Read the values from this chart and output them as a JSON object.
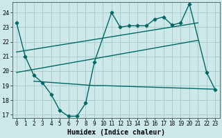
{
  "xlabel": "Humidex (Indice chaleur)",
  "ylabel": "",
  "bg_color": "#cce8e8",
  "grid_color": "#aacccc",
  "line_color": "#006666",
  "ylim": [
    16.8,
    24.7
  ],
  "xlim": [
    -0.5,
    23.5
  ],
  "yticks": [
    17,
    18,
    19,
    20,
    21,
    22,
    23,
    24
  ],
  "xticks": [
    0,
    1,
    2,
    3,
    4,
    5,
    6,
    7,
    8,
    9,
    10,
    11,
    12,
    13,
    14,
    15,
    16,
    17,
    18,
    19,
    20,
    21,
    22,
    23
  ],
  "line1_x": [
    0,
    1,
    2,
    3,
    4,
    5,
    6,
    7,
    8,
    9,
    11,
    12,
    13,
    14,
    15,
    16,
    17,
    18,
    19,
    20,
    22,
    23
  ],
  "line1_y": [
    23.3,
    21.0,
    19.7,
    19.2,
    18.4,
    17.3,
    16.9,
    16.9,
    17.8,
    20.6,
    24.0,
    23.0,
    23.1,
    23.1,
    23.1,
    23.55,
    23.7,
    23.15,
    23.3,
    24.6,
    19.9,
    18.7
  ],
  "line2_x": [
    0,
    21
  ],
  "line2_y": [
    21.3,
    23.3
  ],
  "line3_x": [
    0,
    21
  ],
  "line3_y": [
    19.9,
    22.1
  ],
  "line4_x": [
    2,
    9,
    10,
    23
  ],
  "line4_y": [
    19.3,
    19.0,
    19.0,
    18.75
  ]
}
